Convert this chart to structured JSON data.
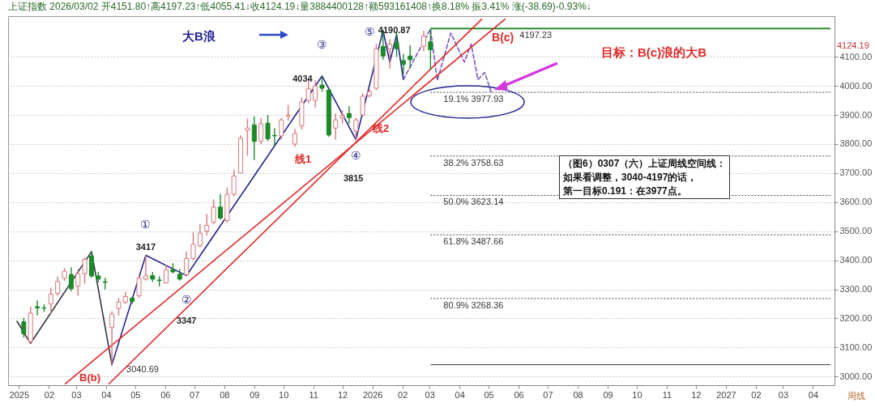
{
  "chart_data": {
    "type": "candlestick",
    "title": "上证指数 2026/03/02 开4151.80↑高4197.23↑低4055.41↓收4124.19↓量3884400128↑额593161408↑换8.18% 振3.41% 涨(-38.69)-0.93%↓",
    "x": [
      "2025-01-06",
      "2025-01-13",
      "2025-01-20",
      "2025-01-27",
      "2025-02-03",
      "2025-02-10",
      "2025-02-17",
      "2025-02-24",
      "2025-03-03",
      "2025-03-10",
      "2025-03-17",
      "2025-03-24",
      "2025-03-31",
      "2025-04-07",
      "2025-04-14",
      "2025-04-21",
      "2025-04-28",
      "2025-05-05",
      "2025-05-12",
      "2025-05-19",
      "2025-05-26",
      "2025-06-02",
      "2025-06-09",
      "2025-06-16",
      "2025-06-23",
      "2025-06-30",
      "2025-07-07",
      "2025-07-14",
      "2025-07-21",
      "2025-07-28",
      "2025-08-04",
      "2025-08-11",
      "2025-08-18",
      "2025-08-25",
      "2025-09-01",
      "2025-09-08",
      "2025-09-15",
      "2025-09-22",
      "2025-09-29",
      "2025-10-06",
      "2025-10-13",
      "2025-10-20",
      "2025-10-27",
      "2025-11-03",
      "2025-11-10",
      "2025-11-17",
      "2025-11-24",
      "2025-12-01",
      "2025-12-08",
      "2025-12-15",
      "2025-12-22",
      "2025-12-29",
      "2026-01-05",
      "2026-01-12",
      "2026-01-19",
      "2026-01-26",
      "2026-02-02",
      "2026-02-09",
      "2026-02-23",
      "2026-03-02"
    ],
    "ohlc": [
      [
        3188,
        3202,
        3134,
        3147
      ],
      [
        3120,
        3240,
        3114,
        3218
      ],
      [
        3240,
        3262,
        3210,
        3236
      ],
      [
        3236,
        3248,
        3222,
        3235
      ],
      [
        3250,
        3305,
        3218,
        3283
      ],
      [
        3286,
        3344,
        3278,
        3327
      ],
      [
        3338,
        3373,
        3329,
        3362
      ],
      [
        3351,
        3376,
        3294,
        3302
      ],
      [
        3311,
        3370,
        3278,
        3354
      ],
      [
        3354,
        3409,
        3319,
        3403
      ],
      [
        3414,
        3430,
        3340,
        3346
      ],
      [
        3346,
        3360,
        3324,
        3335
      ],
      [
        3326,
        3340,
        3300,
        3324
      ],
      [
        3169,
        3225,
        3040.69,
        3215
      ],
      [
        3234,
        3270,
        3210,
        3256
      ],
      [
        3256,
        3292,
        3250,
        3275
      ],
      [
        3270,
        3275,
        3250,
        3259
      ],
      [
        3278,
        3346,
        3270,
        3338
      ],
      [
        3335,
        3417,
        3330,
        3346
      ],
      [
        3347,
        3360,
        3325,
        3335
      ],
      [
        3332,
        3345,
        3310,
        3330
      ],
      [
        3322,
        3385,
        3320,
        3368
      ],
      [
        3368,
        3390,
        3355,
        3360
      ],
      [
        3352,
        3370,
        3330,
        3335
      ],
      [
        3350,
        3430,
        3347,
        3406
      ],
      [
        3406,
        3497,
        3400,
        3455
      ],
      [
        3450,
        3525,
        3445,
        3493
      ],
      [
        3500,
        3560,
        3485,
        3520
      ],
      [
        3531,
        3610,
        3525,
        3583
      ],
      [
        3583,
        3628,
        3540,
        3545
      ],
      [
        3537,
        3650,
        3530,
        3627
      ],
      [
        3627,
        3712,
        3620,
        3690
      ],
      [
        3700,
        3830,
        3700,
        3820
      ],
      [
        3847,
        3888,
        3760,
        3855
      ],
      [
        3866,
        3895,
        3745,
        3809
      ],
      [
        3810,
        3890,
        3800,
        3870
      ],
      [
        3872,
        3900,
        3810,
        3818
      ],
      [
        3830,
        3855,
        3795,
        3828
      ],
      [
        3828,
        3890,
        3815,
        3883
      ],
      [
        3897,
        3935,
        3880,
        3899
      ],
      [
        3800,
        3852,
        3790,
        3836
      ],
      [
        3863,
        3960,
        3850,
        3945
      ],
      [
        3950,
        4025,
        3940,
        3990
      ],
      [
        3950,
        4020,
        3926,
        4000
      ],
      [
        4003,
        4034,
        3980,
        3992
      ],
      [
        3986,
        3990,
        3825,
        3831
      ],
      [
        3855,
        3905,
        3815,
        3883
      ],
      [
        3890,
        3915,
        3870,
        3897
      ],
      [
        3905,
        3930,
        3870,
        3891
      ],
      [
        3845,
        3890,
        3815,
        3883
      ],
      [
        3900,
        3975,
        3895,
        3965
      ],
      [
        3967,
        3990,
        3960,
        3980
      ],
      [
        3992,
        4145,
        3985,
        4128
      ],
      [
        4136,
        4190.87,
        4090,
        4103
      ],
      [
        4128,
        4160,
        4060,
        4144
      ],
      [
        4150,
        4185,
        4100,
        4128
      ],
      [
        4087,
        4110,
        4040,
        4074
      ],
      [
        4103,
        4140,
        4060,
        4090
      ],
      [
        4136,
        4190,
        4120,
        4171
      ],
      [
        4151.8,
        4197.23,
        4055.41,
        4124.19
      ]
    ],
    "colors": [
      "#1d8a2a",
      "#d9777a",
      "#1d8a2a",
      "#1d8a2a",
      "#d9777a",
      "#d9777a",
      "#d9777a",
      "#1d8a2a",
      "#d9777a",
      "#d9777a",
      "#1d8a2a",
      "#1d8a2a",
      "#1d8a2a",
      "#d9777a",
      "#d9777a",
      "#d9777a",
      "#1d8a2a",
      "#d9777a",
      "#d9777a",
      "#1d8a2a",
      "#1d8a2a",
      "#d9777a",
      "#1d8a2a",
      "#1d8a2a",
      "#d9777a",
      "#d9777a",
      "#d9777a",
      "#d9777a",
      "#d9777a",
      "#1d8a2a",
      "#d9777a",
      "#d9777a",
      "#d9777a",
      "#d9777a",
      "#1d8a2a",
      "#d9777a",
      "#1d8a2a",
      "#1d8a2a",
      "#d9777a",
      "#d9777a",
      "#d9777a",
      "#d9777a",
      "#d9777a",
      "#d9777a",
      "#1d8a2a",
      "#1d8a2a",
      "#d9777a",
      "#d9777a",
      "#1d8a2a",
      "#d9777a",
      "#d9777a",
      "#d9777a",
      "#d9777a",
      "#1d8a2a",
      "#d9777a",
      "#1d8a2a",
      "#1d8a2a",
      "#1d8a2a",
      "#d9777a",
      "#1d8a2a"
    ],
    "series": [
      {
        "type": "line",
        "color": "#333344",
        "x": [
          "2024-12-30",
          "2025-01-13",
          "2025-03-17",
          "2025-04-07"
        ],
        "values": [
          3190,
          3114,
          3430,
          3040.69
        ]
      },
      {
        "type": "line",
        "color": "#23238f",
        "x": [
          "2025-04-07",
          "2025-05-12",
          "2025-06-23",
          "2025-11-10",
          "2025-12-15",
          "2026-01-12",
          "2026-01-19",
          "2026-01-26",
          "2026-02-02"
        ],
        "values": [
          3040.69,
          3417,
          3347,
          4034,
          3815,
          4190.87,
          4082,
          4177,
          4022
        ]
      },
      {
        "type": "line",
        "color": "#7b52c7",
        "line_style": "dashed",
        "x": [
          "2026-02-02",
          "2026-03-02",
          "2026-03-09",
          "2026-03-23",
          "2026-04-06",
          "2026-04-13",
          "2026-04-20",
          "2026-04-27",
          "2026-05-04"
        ],
        "values": [
          4022,
          4196,
          4019,
          4182,
          4082,
          4144,
          4022,
          4046,
          3975
        ]
      },
      {
        "type": "line",
        "color": "#e02828",
        "x": [
          "2025-02-18",
          "2026-05-18"
        ],
        "values": [
          2975,
          4230
        ]
      },
      {
        "type": "line",
        "color": "#e02828",
        "x": [
          "2025-04-04",
          "2026-04-24"
        ],
        "values": [
          2975,
          4230
        ]
      }
    ],
    "xlim": [
      "2024-12-25",
      "2027-04-19"
    ],
    "xticks": [
      {
        "value": "2025-01",
        "label": "2025"
      },
      {
        "value": "2025-02",
        "label": "02"
      },
      {
        "value": "2025-03",
        "label": "03"
      },
      {
        "value": "2025-04",
        "label": "04"
      },
      {
        "value": "2025-05",
        "label": "05"
      },
      {
        "value": "2025-06",
        "label": "06"
      },
      {
        "value": "2025-07",
        "label": "07"
      },
      {
        "value": "2025-08",
        "label": "08"
      },
      {
        "value": "2025-09",
        "label": "09"
      },
      {
        "value": "2025-10",
        "label": "10"
      },
      {
        "value": "2025-11",
        "label": "11"
      },
      {
        "value": "2025-12",
        "label": "12"
      },
      {
        "value": "2026-01",
        "label": "2026"
      },
      {
        "value": "2026-02",
        "label": "02"
      },
      {
        "value": "2026-03",
        "label": "03"
      },
      {
        "value": "2026-04",
        "label": "04"
      },
      {
        "value": "2026-05",
        "label": "05"
      },
      {
        "value": "2026-06",
        "label": "06"
      },
      {
        "value": "2026-07",
        "label": "07"
      },
      {
        "value": "2026-08",
        "label": "08"
      },
      {
        "value": "2026-09",
        "label": "09"
      },
      {
        "value": "2026-10",
        "label": "10"
      },
      {
        "value": "2026-11",
        "label": "11"
      },
      {
        "value": "2026-12",
        "label": "12"
      },
      {
        "value": "2027-01",
        "label": "2027"
      },
      {
        "value": "2027-02",
        "label": "02"
      },
      {
        "value": "2027-03",
        "label": "03"
      },
      {
        "value": "2027-04",
        "label": "04"
      }
    ],
    "ylim": [
      2970,
      4240
    ],
    "yticks": [
      {
        "value": 3000,
        "label": "3000.00"
      },
      {
        "value": 3100,
        "label": "3100.00"
      },
      {
        "value": 3200,
        "label": "3200.00"
      },
      {
        "value": 3300,
        "label": "3300.00"
      },
      {
        "value": 3400,
        "label": "3400.00"
      },
      {
        "value": 3500,
        "label": "3500.00"
      },
      {
        "value": 3600,
        "label": "3600.00"
      },
      {
        "value": 3700,
        "label": "3700.00"
      },
      {
        "value": 3800,
        "label": "3800.00"
      },
      {
        "value": 3900,
        "label": "3900.00"
      },
      {
        "value": 4000,
        "label": "4000.00"
      },
      {
        "value": 4100,
        "label": "4100.00"
      }
    ],
    "grid": "y",
    "ref_lines": [
      {
        "axis": "y",
        "value": 4197.23,
        "label": "4197.23",
        "color": "#2e8b2e",
        "line_style": "solid"
      },
      {
        "axis": "y",
        "value": 3977.93,
        "label": "19.1% 3977.93",
        "color": "#444444",
        "line_style": "dotted"
      },
      {
        "axis": "y",
        "value": 3758.63,
        "label": "38.2% 3758.63",
        "color": "#444444",
        "line_style": "dotted"
      },
      {
        "axis": "y",
        "value": 3623.14,
        "label": "50.0% 3623.14",
        "color": "#444444",
        "line_style": "dotted"
      },
      {
        "axis": "y",
        "value": 3487.66,
        "label": "61.8% 3487.66",
        "color": "#444444",
        "line_style": "dotted"
      },
      {
        "axis": "y",
        "value": 3268.36,
        "label": "80.9% 3268.36",
        "color": "#444444",
        "line_style": "dotted"
      },
      {
        "axis": "y",
        "value": 3040.69,
        "color": "#333333",
        "line_style": "solid"
      }
    ],
    "annotations": [
      {
        "text": "①",
        "x": "2025-05-12",
        "y": 3417
      },
      {
        "text": "3417",
        "x": "2025-05-12",
        "y": 3417
      },
      {
        "text": "②",
        "x": "2025-06-23",
        "y": 3347
      },
      {
        "text": "③",
        "x": "2025-11-10",
        "y": 4034
      },
      {
        "text": "4034",
        "x": "2025-11-10",
        "y": 4034
      },
      {
        "text": "④",
        "x": "2025-12-15",
        "y": 3815
      },
      {
        "text": "⑤",
        "x": "2026-01-12",
        "y": 4190.87
      },
      {
        "text": "4190.87",
        "x": "2026-01-12",
        "y": 4190.87
      },
      {
        "text": "3040.69",
        "x": "2025-04-07",
        "y": 3040.69
      },
      {
        "text": "B(b)",
        "x": "2025-04-07",
        "y": 3040.69
      },
      {
        "text": "B(c)",
        "x": "2026-05-04",
        "y": 4177
      },
      "3347",
      "3815",
      "线1",
      "线2",
      "4124.19",
      "大B浪",
      "目标：B(c)浪的大B",
      "（图6）0307（六）上证周线空间线：",
      "如果看调整，3040-4197的话，",
      "第一目标0.191：在3977点。",
      "周线"
    ]
  }
}
